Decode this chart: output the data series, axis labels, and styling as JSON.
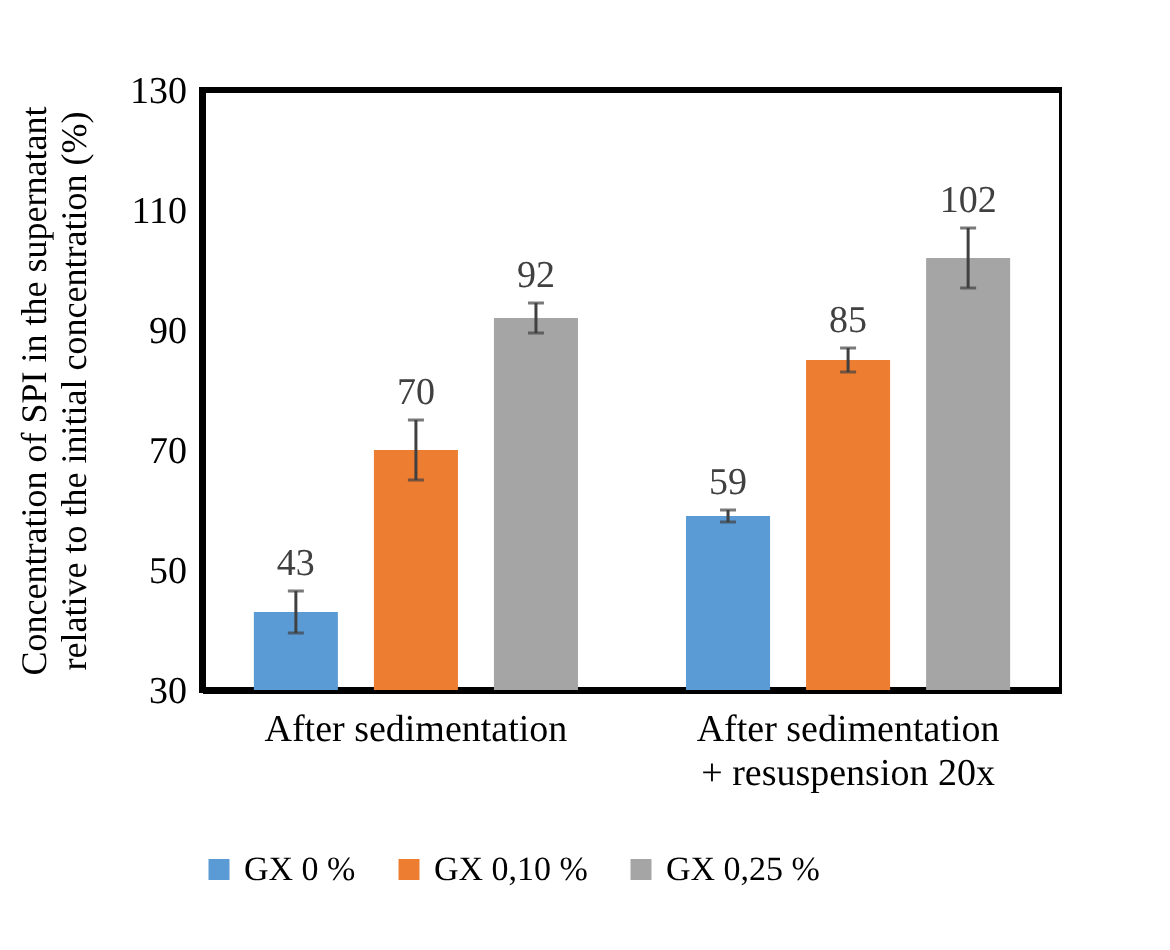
{
  "chart_data": {
    "type": "bar",
    "ylabel": "Concentration of SPI in the supernatant\nrelative to the initial concentration (%)",
    "categories": [
      "After sedimentation",
      "After sedimentation\n+ resuspension 20x"
    ],
    "series": [
      {
        "name": "GX 0 %",
        "color": "#5b9bd5",
        "values": [
          43,
          59
        ],
        "errors": [
          3.5,
          1
        ]
      },
      {
        "name": "GX 0,10 %",
        "color": "#ed7d31",
        "values": [
          70,
          85
        ],
        "errors": [
          5,
          2
        ]
      },
      {
        "name": "GX 0,25 %",
        "color": "#a5a5a5",
        "values": [
          92,
          102
        ],
        "errors": [
          2.5,
          5
        ]
      }
    ],
    "ylim": [
      30,
      130
    ],
    "yticks": [
      30,
      50,
      70,
      90,
      110,
      130
    ],
    "grid": false,
    "legend": "bottom",
    "data_labels": true
  }
}
